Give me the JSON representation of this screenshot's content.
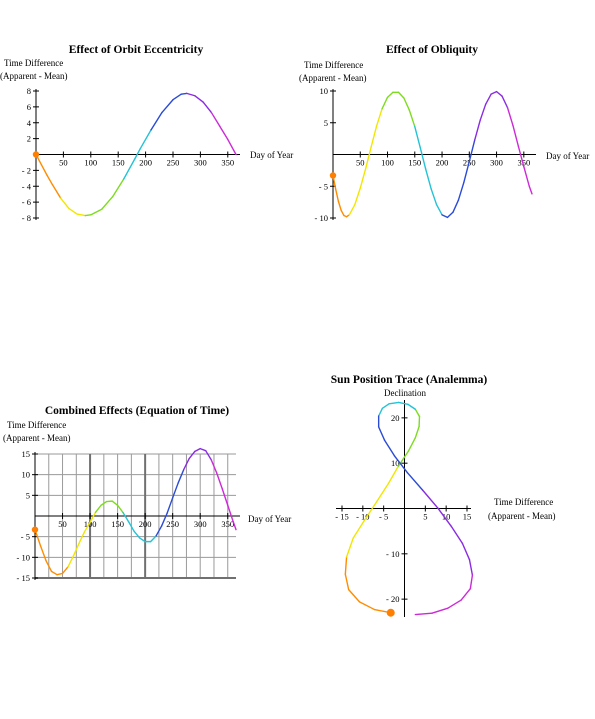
{
  "colors": {
    "orange": "#ff8c00",
    "yellow": "#f2e600",
    "green": "#7ddc1f",
    "cyan": "#22c3d6",
    "blue": "#2a4bd6",
    "purple": "#8a2be2",
    "magenta": "#cc2ad6",
    "marker": "#ff7f00"
  },
  "chart_data": [
    {
      "id": "eccentricity",
      "type": "line",
      "title": "Effect of Orbit Eccentricity",
      "xlabel": "Day of Year",
      "ylabel": [
        "Time Difference",
        "(Apparent - Mean)"
      ],
      "xlim": [
        0,
        365
      ],
      "ylim": [
        -8,
        8
      ],
      "xticks": [
        50,
        100,
        150,
        200,
        250,
        300,
        350
      ],
      "yticks": [
        -8,
        -6,
        -4,
        -2,
        2,
        4,
        6,
        8
      ],
      "grid": false,
      "marker": {
        "x": 0,
        "y": 0
      },
      "points": [
        [
          0,
          0
        ],
        [
          10,
          -1.3
        ],
        [
          20,
          -2.6
        ],
        [
          30,
          -3.8
        ],
        [
          45,
          -5.5
        ],
        [
          60,
          -6.8
        ],
        [
          75,
          -7.5
        ],
        [
          90,
          -7.7
        ],
        [
          100,
          -7.6
        ],
        [
          120,
          -6.9
        ],
        [
          140,
          -5.3
        ],
        [
          160,
          -3.1
        ],
        [
          180,
          -0.6
        ],
        [
          190,
          0.7
        ],
        [
          210,
          3.1
        ],
        [
          230,
          5.3
        ],
        [
          250,
          6.9
        ],
        [
          265,
          7.6
        ],
        [
          275,
          7.7
        ],
        [
          290,
          7.4
        ],
        [
          305,
          6.6
        ],
        [
          320,
          5.3
        ],
        [
          335,
          3.6
        ],
        [
          350,
          1.9
        ],
        [
          365,
          0
        ]
      ]
    },
    {
      "id": "obliquity",
      "type": "line",
      "title": "Effect of Obliquity",
      "xlabel": "Day of Year",
      "ylabel": [
        "Time Difference",
        "(Apparent - Mean)"
      ],
      "xlim": [
        0,
        365
      ],
      "ylim": [
        -10,
        10
      ],
      "xticks": [
        50,
        100,
        150,
        200,
        250,
        300,
        350
      ],
      "yticks": [
        -10,
        -5,
        5,
        10
      ],
      "grid": false,
      "marker": {
        "x": 0,
        "y": -3.3
      },
      "points": [
        [
          0,
          -3.3
        ],
        [
          5,
          -5.5
        ],
        [
          10,
          -7.4
        ],
        [
          15,
          -8.8
        ],
        [
          20,
          -9.6
        ],
        [
          25,
          -9.8
        ],
        [
          30,
          -9.5
        ],
        [
          40,
          -7.9
        ],
        [
          50,
          -5.3
        ],
        [
          60,
          -2.2
        ],
        [
          70,
          1.2
        ],
        [
          80,
          4.5
        ],
        [
          90,
          7.2
        ],
        [
          100,
          9.0
        ],
        [
          110,
          9.8
        ],
        [
          120,
          9.8
        ],
        [
          130,
          8.9
        ],
        [
          140,
          7.0
        ],
        [
          150,
          4.4
        ],
        [
          160,
          1.1
        ],
        [
          170,
          -2.3
        ],
        [
          180,
          -5.4
        ],
        [
          190,
          -7.9
        ],
        [
          200,
          -9.5
        ],
        [
          210,
          -9.9
        ],
        [
          220,
          -9.1
        ],
        [
          230,
          -7.2
        ],
        [
          240,
          -4.4
        ],
        [
          250,
          -1.1
        ],
        [
          260,
          2.3
        ],
        [
          270,
          5.4
        ],
        [
          280,
          7.9
        ],
        [
          290,
          9.5
        ],
        [
          300,
          9.9
        ],
        [
          310,
          9.2
        ],
        [
          320,
          7.4
        ],
        [
          330,
          4.6
        ],
        [
          340,
          1.3
        ],
        [
          350,
          -1.9
        ],
        [
          360,
          -5.0
        ],
        [
          365,
          -6.2
        ]
      ]
    },
    {
      "id": "combined",
      "type": "line",
      "title": "Combined Effects (Equation of Time)",
      "xlabel": "Day of Year",
      "ylabel": [
        "Time Difference",
        "(Apparent - Mean)"
      ],
      "xlim": [
        0,
        365
      ],
      "ylim": [
        -15,
        15
      ],
      "xticks": [
        50,
        100,
        150,
        200,
        250,
        300,
        350
      ],
      "yticks": [
        -15,
        -10,
        -5,
        5,
        10,
        15
      ],
      "grid": true,
      "marker": {
        "x": 0,
        "y": -3.3
      },
      "points": [
        [
          0,
          -3.3
        ],
        [
          10,
          -7.2
        ],
        [
          20,
          -10.8
        ],
        [
          30,
          -13.4
        ],
        [
          40,
          -14.2
        ],
        [
          50,
          -13.9
        ],
        [
          60,
          -12.3
        ],
        [
          70,
          -9.6
        ],
        [
          80,
          -6.6
        ],
        [
          90,
          -3.8
        ],
        [
          100,
          -1.5
        ],
        [
          110,
          0.9
        ],
        [
          120,
          2.6
        ],
        [
          130,
          3.5
        ],
        [
          140,
          3.6
        ],
        [
          150,
          2.6
        ],
        [
          160,
          0.8
        ],
        [
          170,
          -1.4
        ],
        [
          180,
          -3.7
        ],
        [
          190,
          -5.3
        ],
        [
          200,
          -6.2
        ],
        [
          210,
          -6.2
        ],
        [
          220,
          -4.8
        ],
        [
          230,
          -2.4
        ],
        [
          240,
          0.7
        ],
        [
          250,
          4.4
        ],
        [
          260,
          8.0
        ],
        [
          270,
          11.2
        ],
        [
          280,
          13.9
        ],
        [
          290,
          15.6
        ],
        [
          300,
          16.3
        ],
        [
          310,
          15.8
        ],
        [
          320,
          13.6
        ],
        [
          330,
          10.4
        ],
        [
          340,
          6.6
        ],
        [
          350,
          2.6
        ],
        [
          360,
          -1.4
        ],
        [
          365,
          -3.3
        ]
      ]
    },
    {
      "id": "analemma",
      "type": "line",
      "title": "Sun Position Trace (Analemma)",
      "ylabel": "Declination",
      "xlabel": [
        "Time Difference",
        "(Apparent - Mean)"
      ],
      "xlim": [
        -15,
        15
      ],
      "ylim": [
        -23.5,
        23.5
      ],
      "xticks": [
        -15,
        -10,
        -5,
        5,
        10,
        15
      ],
      "yticks": [
        -20,
        -10,
        10,
        20
      ],
      "grid": false,
      "marker": {
        "x": -3.3,
        "y": -23
      },
      "points": [
        [
          -3.3,
          -23
        ],
        [
          -7.2,
          -22.3
        ],
        [
          -10.8,
          -20.6
        ],
        [
          -13.4,
          -17.9
        ],
        [
          -14.2,
          -14.5
        ],
        [
          -13.9,
          -10.7
        ],
        [
          -12.3,
          -6.5
        ],
        [
          -9.6,
          -2.6
        ],
        [
          -6.6,
          1.6
        ],
        [
          -3.8,
          5.6
        ],
        [
          -1.5,
          9.3
        ],
        [
          0.9,
          12.6
        ],
        [
          2.6,
          15.6
        ],
        [
          3.5,
          18.1
        ],
        [
          3.6,
          20.3
        ],
        [
          2.6,
          21.9
        ],
        [
          0.8,
          23.0
        ],
        [
          -1.4,
          23.4
        ],
        [
          -3.7,
          23.1
        ],
        [
          -5.3,
          22.1
        ],
        [
          -6.2,
          20.4
        ],
        [
          -6.2,
          18.0
        ],
        [
          -4.8,
          15.1
        ],
        [
          -2.4,
          11.6
        ],
        [
          0.7,
          7.9
        ],
        [
          4.4,
          4.0
        ],
        [
          8.0,
          0.1
        ],
        [
          11.2,
          -3.9
        ],
        [
          13.9,
          -7.7
        ],
        [
          15.6,
          -11.3
        ],
        [
          16.3,
          -14.7
        ],
        [
          15.8,
          -17.7
        ],
        [
          13.6,
          -20.2
        ],
        [
          10.4,
          -22.0
        ],
        [
          6.6,
          -23.1
        ],
        [
          2.6,
          -23.4
        ]
      ]
    }
  ]
}
